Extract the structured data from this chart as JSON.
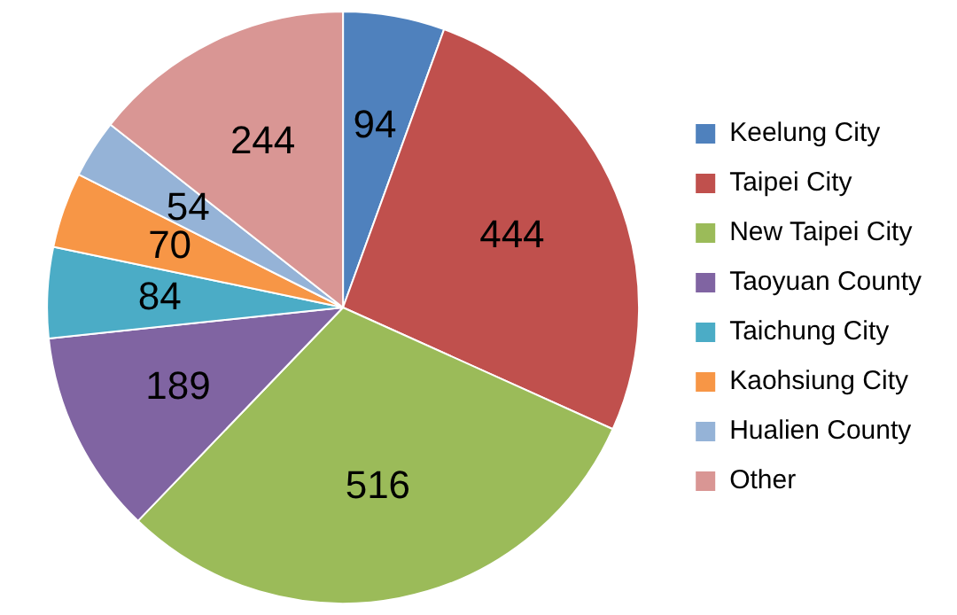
{
  "chart_data": {
    "type": "pie",
    "categories": [
      "Keelung City",
      "Taipei City",
      "New Taipei City",
      "Taoyuan County",
      "Taichung City",
      "Kaohsiung City",
      "Hualien County",
      "Other"
    ],
    "values": [
      94,
      444,
      516,
      189,
      84,
      70,
      54,
      244
    ],
    "colors": [
      "#4f81bd",
      "#c0504d",
      "#9bbb59",
      "#8064a2",
      "#4bacc6",
      "#f79646",
      "#95b3d7",
      "#d99694"
    ],
    "data_labels": true,
    "legend": "right"
  }
}
